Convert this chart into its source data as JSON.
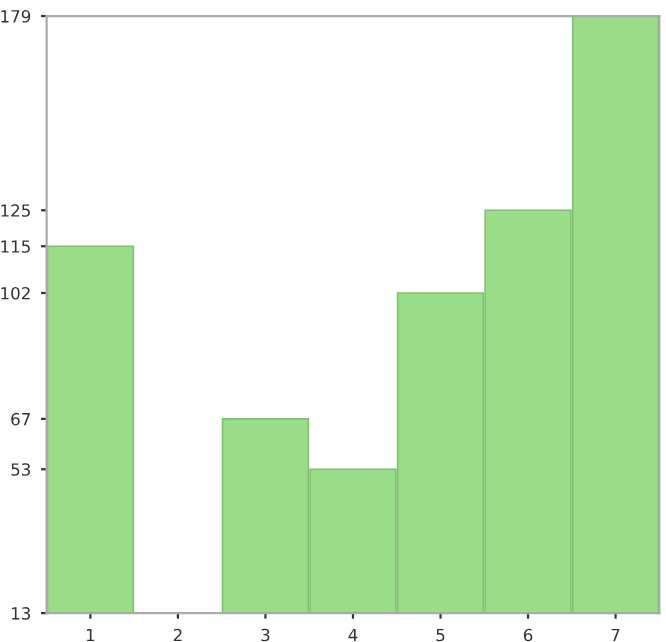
{
  "chart_data": {
    "type": "bar",
    "categories": [
      "1",
      "2",
      "3",
      "4",
      "5",
      "6",
      "7"
    ],
    "values": [
      115,
      13,
      67,
      53,
      102,
      125,
      179
    ],
    "color": "#99dd88",
    "ylim": [
      13,
      179
    ],
    "yticks": [
      13,
      53,
      67,
      102,
      115,
      125,
      179
    ],
    "grid": false
  }
}
